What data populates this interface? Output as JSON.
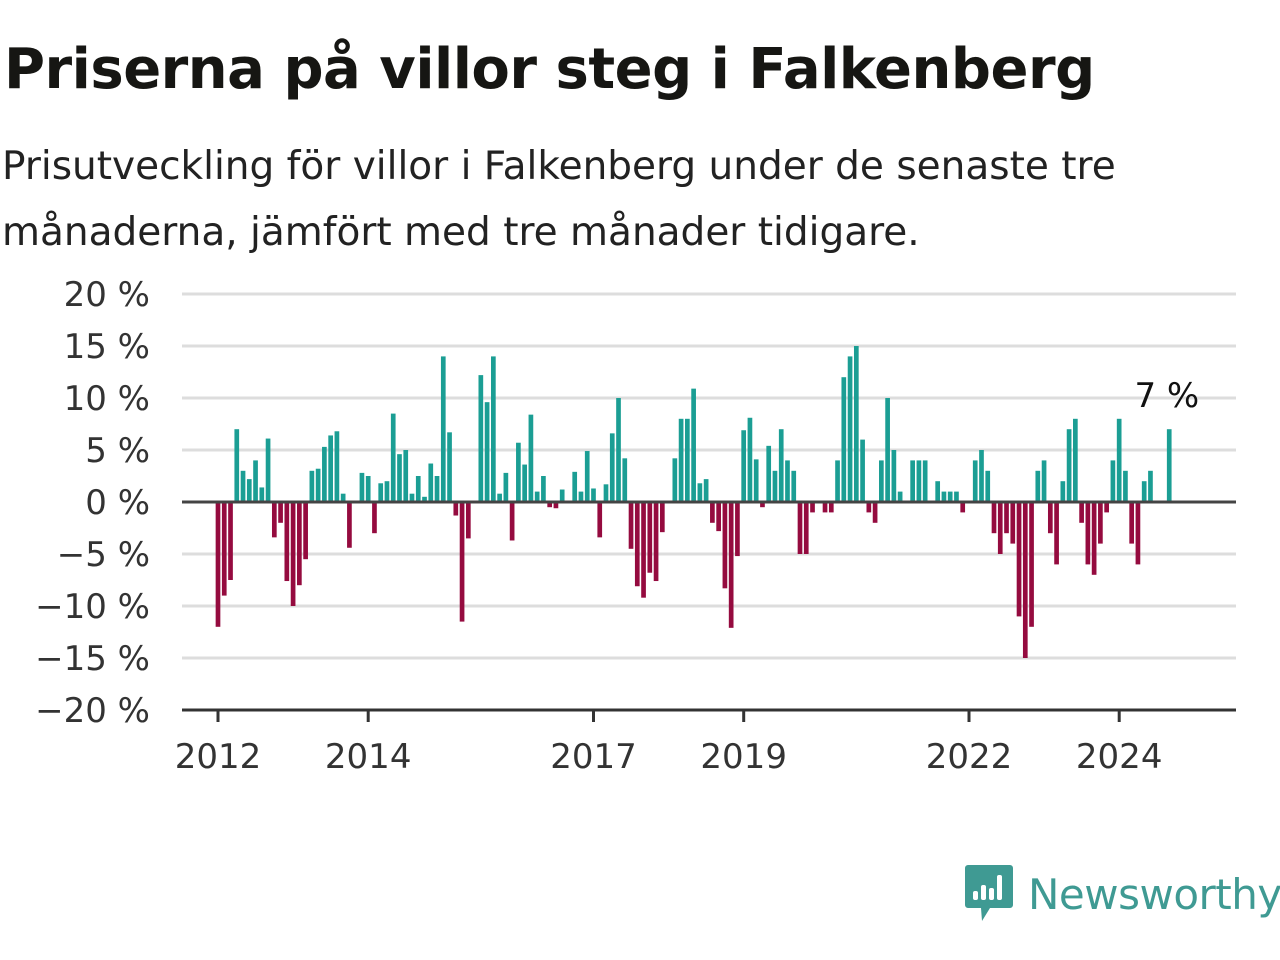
{
  "chart_data": {
    "type": "bar",
    "title": "Priserna på villor steg i Falkenberg",
    "subtitle": "Prisutveckling för villor i Falkenberg under de senaste tre månaderna, jämfört med tre månader tidigare.",
    "xlabel": "",
    "ylabel": "",
    "ylim": [
      -20,
      20
    ],
    "y_ticks": [
      20,
      15,
      10,
      5,
      0,
      -5,
      -10,
      -15,
      -20
    ],
    "y_tick_labels": [
      "20 %",
      "15 %",
      "10 %",
      "5 %",
      "0 %",
      "−5 %",
      "−10 %",
      "−15 %",
      "−20 %"
    ],
    "x_ticks": [
      2012,
      2014,
      2017,
      2019,
      2022,
      2024
    ],
    "x_tick_labels": [
      "2012",
      "2014",
      "2017",
      "2019",
      "2022",
      "2024"
    ],
    "x_start": 2012.0,
    "x_step": 0.08333,
    "grid": true,
    "colors": {
      "positive": "#1b9e94",
      "negative": "#950b3f",
      "grid": "#dddddd",
      "zero_line": "#444444",
      "axis": "#333333"
    },
    "values": [
      -12,
      -9,
      -7.5,
      7,
      3,
      2.2,
      4,
      1.4,
      6.1,
      -3.4,
      -2,
      -7.6,
      -10,
      -8,
      -5.5,
      3,
      3.2,
      5.3,
      6.4,
      6.8,
      0.8,
      -4.4,
      0,
      2.8,
      2.5,
      -3,
      1.8,
      2,
      8.5,
      4.6,
      5,
      0.8,
      2.5,
      0.5,
      3.7,
      2.5,
      14,
      6.7,
      -1.3,
      -11.5,
      -3.5,
      0,
      12.2,
      9.6,
      14,
      0.8,
      2.8,
      -3.7,
      5.7,
      3.6,
      8.4,
      1,
      2.5,
      -0.5,
      -0.6,
      1.2,
      0,
      2.9,
      1,
      4.9,
      1.3,
      -3.4,
      1.7,
      6.6,
      10,
      4.2,
      -4.5,
      -8.1,
      -9.2,
      -6.8,
      -7.6,
      -2.9,
      0,
      4.2,
      8,
      8,
      10.9,
      1.8,
      2.2,
      -2,
      -2.8,
      -8.3,
      -12.1,
      -5.2,
      6.9,
      8.1,
      4.1,
      -0.5,
      5.4,
      3,
      7,
      4,
      3,
      -5,
      -5,
      -1,
      0,
      -1,
      -1,
      4,
      12,
      14,
      15,
      6,
      -1,
      -2,
      4,
      10,
      5,
      1,
      0,
      4,
      4,
      4,
      0,
      2,
      1,
      1,
      1,
      -1,
      0,
      4,
      5,
      3,
      -3,
      -5,
      -3,
      -4,
      -11,
      -15,
      -12,
      3,
      4,
      -3,
      -6,
      2,
      7,
      8,
      -2,
      -6,
      -7,
      -4,
      -1,
      4,
      8,
      3,
      -4,
      -6,
      2,
      3,
      0,
      0,
      7
    ],
    "annotations": [
      {
        "text": "7 %",
        "x_index": 152
      }
    ]
  },
  "brand": {
    "name": "Newsworthy",
    "icon": "newsworthy-logo-icon"
  }
}
